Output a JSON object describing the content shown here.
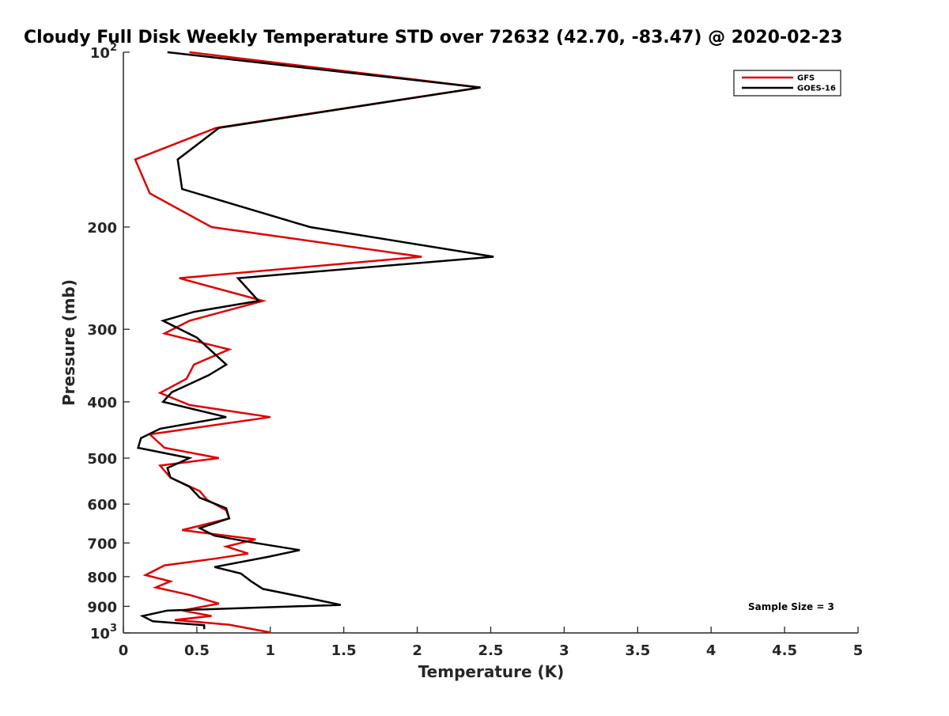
{
  "chart_data": {
    "type": "line",
    "title": "Cloudy Full Disk Weekly Temperature STD over 72632 (42.70, -83.47) @ 2020-02-23",
    "xlabel": "Temperature (K)",
    "ylabel": "Pressure (mb)",
    "xlim": [
      0,
      5
    ],
    "ylim": [
      100,
      1000
    ],
    "y_scale": "log",
    "y_reversed": true,
    "x_ticks": [
      "0",
      "0.5",
      "1",
      "1.5",
      "2",
      "2.5",
      "3",
      "3.5",
      "4",
      "4.5",
      "5"
    ],
    "y_ticks": [
      {
        "value": 100,
        "base": "10",
        "exp": "2"
      },
      {
        "value": 200,
        "label": "200"
      },
      {
        "value": 300,
        "label": "300"
      },
      {
        "value": 400,
        "label": "400"
      },
      {
        "value": 500,
        "label": "500"
      },
      {
        "value": 600,
        "label": "600"
      },
      {
        "value": 700,
        "label": "700"
      },
      {
        "value": 800,
        "label": "800"
      },
      {
        "value": 900,
        "label": "900"
      },
      {
        "value": 1000,
        "base": "10",
        "exp": "3"
      }
    ],
    "legend_position": "top-right",
    "grid": false,
    "annotation": "Sample Size = 3",
    "series": [
      {
        "name": "GFS",
        "color": "#e00000",
        "points": [
          [
            0.45,
            100
          ],
          [
            2.43,
            115
          ],
          [
            0.63,
            135
          ],
          [
            0.08,
            153
          ],
          [
            0.18,
            175
          ],
          [
            0.6,
            200
          ],
          [
            2.03,
            225
          ],
          [
            0.38,
            245
          ],
          [
            0.95,
            268
          ],
          [
            0.45,
            290
          ],
          [
            0.28,
            305
          ],
          [
            0.72,
            325
          ],
          [
            0.48,
            345
          ],
          [
            0.43,
            365
          ],
          [
            0.25,
            386
          ],
          [
            0.45,
            405
          ],
          [
            1.0,
            425
          ],
          [
            0.18,
            455
          ],
          [
            0.28,
            480
          ],
          [
            0.65,
            500
          ],
          [
            0.25,
            515
          ],
          [
            0.32,
            540
          ],
          [
            0.52,
            570
          ],
          [
            0.57,
            590
          ],
          [
            0.7,
            615
          ],
          [
            0.72,
            635
          ],
          [
            0.4,
            665
          ],
          [
            0.9,
            690
          ],
          [
            0.7,
            710
          ],
          [
            0.85,
            730
          ],
          [
            0.62,
            745
          ],
          [
            0.28,
            765
          ],
          [
            0.15,
            795
          ],
          [
            0.32,
            815
          ],
          [
            0.22,
            835
          ],
          [
            0.45,
            860
          ],
          [
            0.65,
            890
          ],
          [
            0.4,
            915
          ],
          [
            0.6,
            935
          ],
          [
            0.35,
            950
          ],
          [
            0.72,
            968
          ],
          [
            1.0,
            998
          ]
        ]
      },
      {
        "name": "GOES-16",
        "color": "#000000",
        "points": [
          [
            0.3,
            100
          ],
          [
            2.43,
            115
          ],
          [
            0.65,
            135
          ],
          [
            0.37,
            153
          ],
          [
            0.4,
            172
          ],
          [
            1.27,
            200
          ],
          [
            2.52,
            225
          ],
          [
            0.78,
            245
          ],
          [
            0.92,
            268
          ],
          [
            0.48,
            280
          ],
          [
            0.27,
            290
          ],
          [
            0.5,
            310
          ],
          [
            0.7,
            345
          ],
          [
            0.58,
            360
          ],
          [
            0.33,
            385
          ],
          [
            0.27,
            400
          ],
          [
            0.7,
            425
          ],
          [
            0.25,
            445
          ],
          [
            0.12,
            462
          ],
          [
            0.1,
            480
          ],
          [
            0.45,
            500
          ],
          [
            0.3,
            520
          ],
          [
            0.32,
            540
          ],
          [
            0.45,
            560
          ],
          [
            0.52,
            585
          ],
          [
            0.7,
            610
          ],
          [
            0.72,
            635
          ],
          [
            0.52,
            660
          ],
          [
            0.62,
            680
          ],
          [
            0.9,
            700
          ],
          [
            1.2,
            720
          ],
          [
            0.98,
            740
          ],
          [
            0.62,
            770
          ],
          [
            0.8,
            790
          ],
          [
            0.87,
            815
          ],
          [
            0.95,
            840
          ],
          [
            1.25,
            870
          ],
          [
            1.48,
            895
          ],
          [
            0.3,
            915
          ],
          [
            0.13,
            935
          ],
          [
            0.2,
            955
          ],
          [
            0.55,
            970
          ],
          [
            0.55,
            985
          ]
        ]
      }
    ]
  }
}
